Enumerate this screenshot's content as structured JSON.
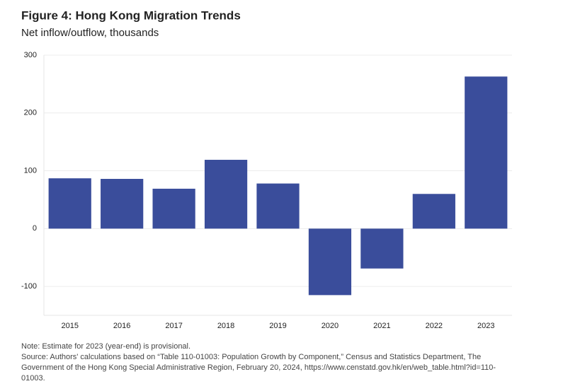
{
  "chart_data": {
    "type": "bar",
    "title": "Figure 4: Hong Kong Migration Trends",
    "subtitle": "Net inflow/outflow, thousands",
    "categories": [
      "2015",
      "2016",
      "2017",
      "2018",
      "2019",
      "2020",
      "2021",
      "2022",
      "2023"
    ],
    "values": [
      87,
      86,
      69,
      119,
      78,
      -115,
      -69,
      60,
      263
    ],
    "color": "#3a4d9b",
    "ylim": [
      -150,
      300
    ],
    "yticks": [
      -100,
      0,
      100,
      200,
      300
    ],
    "grid": true,
    "note": "Note: Estimate for 2023 (year-end) is provisional.",
    "source": "Source: Authors' calculations based on “Table 110-01003: Population Growth by Component,” Census and Statistics Department, The Government of the Hong Kong Special Administrative Region, February 20, 2024, https://www.censtatd.gov.hk/en/web_table.html?id=110-01003."
  }
}
